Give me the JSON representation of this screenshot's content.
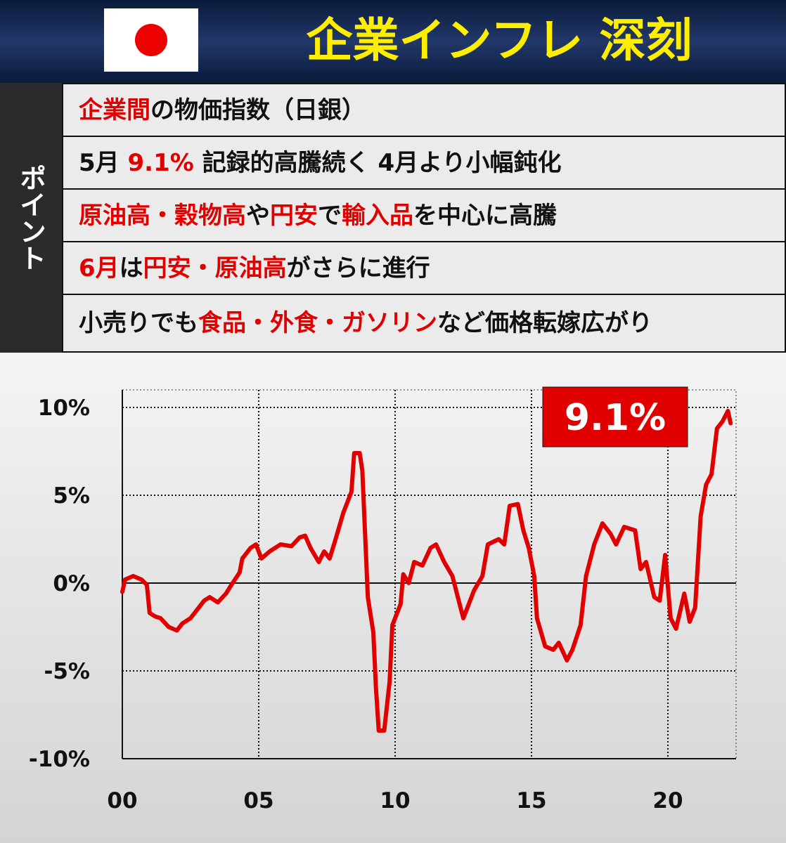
{
  "header": {
    "title": "企業インフレ 深刻"
  },
  "points": {
    "label": "ポイント",
    "rows": [
      [
        {
          "text": "企業間",
          "color": "#e00000"
        },
        {
          "text": "の物価指数（日銀）",
          "color": "#111111"
        }
      ],
      [
        {
          "text": "5月 ",
          "color": "#111111"
        },
        {
          "text": "9.1%",
          "color": "#e00000"
        },
        {
          "text": " 記録的高騰続く 4月より小幅鈍化",
          "color": "#111111"
        }
      ],
      [
        {
          "text": "原油高・穀物高",
          "color": "#e00000"
        },
        {
          "text": "や",
          "color": "#111111"
        },
        {
          "text": "円安",
          "color": "#e00000"
        },
        {
          "text": "で",
          "color": "#111111"
        },
        {
          "text": "輸入品",
          "color": "#e00000"
        },
        {
          "text": "を中心に高騰",
          "color": "#111111"
        }
      ],
      [
        {
          "text": "6月",
          "color": "#e00000"
        },
        {
          "text": "は",
          "color": "#111111"
        },
        {
          "text": "円安・原油高",
          "color": "#e00000"
        },
        {
          "text": "がさらに進行",
          "color": "#111111"
        }
      ],
      [
        {
          "text": "小売りでも",
          "color": "#111111"
        },
        {
          "text": "食品・外食・ガソリン",
          "color": "#e00000"
        },
        {
          "text": "など価格転嫁広がり",
          "color": "#111111"
        }
      ]
    ]
  },
  "chart_data": {
    "type": "line",
    "color": "#e00000",
    "annotation": "9.1%",
    "grid": true,
    "xlim": [
      0,
      22.5
    ],
    "xticks": [
      {
        "value": 0,
        "label": "00"
      },
      {
        "value": 5,
        "label": "05"
      },
      {
        "value": 10,
        "label": "10"
      },
      {
        "value": 15,
        "label": "15"
      },
      {
        "value": 20,
        "label": "20"
      }
    ],
    "ylim": [
      -10,
      11
    ],
    "yticks": [
      {
        "value": -10,
        "label": "-10%"
      },
      {
        "value": -5,
        "label": "-5%"
      },
      {
        "value": 0,
        "label": "0%"
      },
      {
        "value": 5,
        "label": "5%"
      },
      {
        "value": 10,
        "label": "10%"
      }
    ],
    "x": [
      0,
      0.1,
      0.4,
      0.7,
      0.9,
      1.0,
      1.2,
      1.4,
      1.7,
      2.0,
      2.2,
      2.5,
      2.7,
      3.0,
      3.2,
      3.5,
      3.8,
      4.0,
      4.3,
      4.4,
      4.7,
      4.9,
      5.1,
      5.4,
      5.8,
      6.2,
      6.5,
      6.7,
      6.9,
      7.2,
      7.4,
      7.6,
      7.8,
      8.1,
      8.4,
      8.5,
      8.7,
      8.8,
      8.9,
      9.0,
      9.2,
      9.3,
      9.4,
      9.6,
      9.8,
      9.9,
      10.2,
      10.3,
      10.5,
      10.7,
      11.0,
      11.3,
      11.5,
      11.8,
      12.1,
      12.3,
      12.5,
      12.7,
      12.9,
      13.2,
      13.4,
      13.8,
      14.0,
      14.2,
      14.5,
      14.7,
      14.9,
      15.1,
      15.2,
      15.5,
      15.8,
      16.0,
      16.3,
      16.5,
      16.8,
      17.0,
      17.3,
      17.6,
      17.9,
      18.1,
      18.4,
      18.8,
      19.0,
      19.2,
      19.5,
      19.7,
      19.9,
      20.1,
      20.3,
      20.6,
      20.8,
      21.0,
      21.2,
      21.4,
      21.6,
      21.8,
      22.0,
      22.2,
      22.3
    ],
    "values": [
      -0.5,
      0.2,
      0.4,
      0.2,
      -0.1,
      -1.7,
      -1.9,
      -2.0,
      -2.5,
      -2.7,
      -2.3,
      -2.0,
      -1.6,
      -1.0,
      -0.8,
      -1.1,
      -0.6,
      -0.1,
      0.6,
      1.4,
      2.0,
      2.2,
      1.4,
      1.8,
      2.2,
      2.1,
      2.6,
      2.7,
      2.0,
      1.2,
      1.8,
      1.4,
      2.4,
      4.0,
      5.2,
      7.4,
      7.4,
      6.4,
      2.8,
      -0.8,
      -2.8,
      -6.0,
      -8.4,
      -8.4,
      -5.6,
      -2.4,
      -1.2,
      0.5,
      0,
      1.2,
      1.0,
      2.0,
      2.2,
      1.2,
      0.4,
      -0.8,
      -2.0,
      -1.2,
      -0.4,
      0.4,
      2.2,
      2.5,
      2.2,
      4.4,
      4.5,
      3.0,
      2.0,
      0.4,
      -2.0,
      -3.6,
      -3.8,
      -3.4,
      -4.4,
      -3.8,
      -2.4,
      0.4,
      2.2,
      3.4,
      2.8,
      2.2,
      3.2,
      3.0,
      0.8,
      1.2,
      -0.8,
      -1.0,
      1.6,
      -2.0,
      -2.6,
      -0.6,
      -2.2,
      -1.4,
      3.8,
      5.6,
      6.2,
      8.8,
      9.2,
      9.8,
      9.1
    ]
  }
}
